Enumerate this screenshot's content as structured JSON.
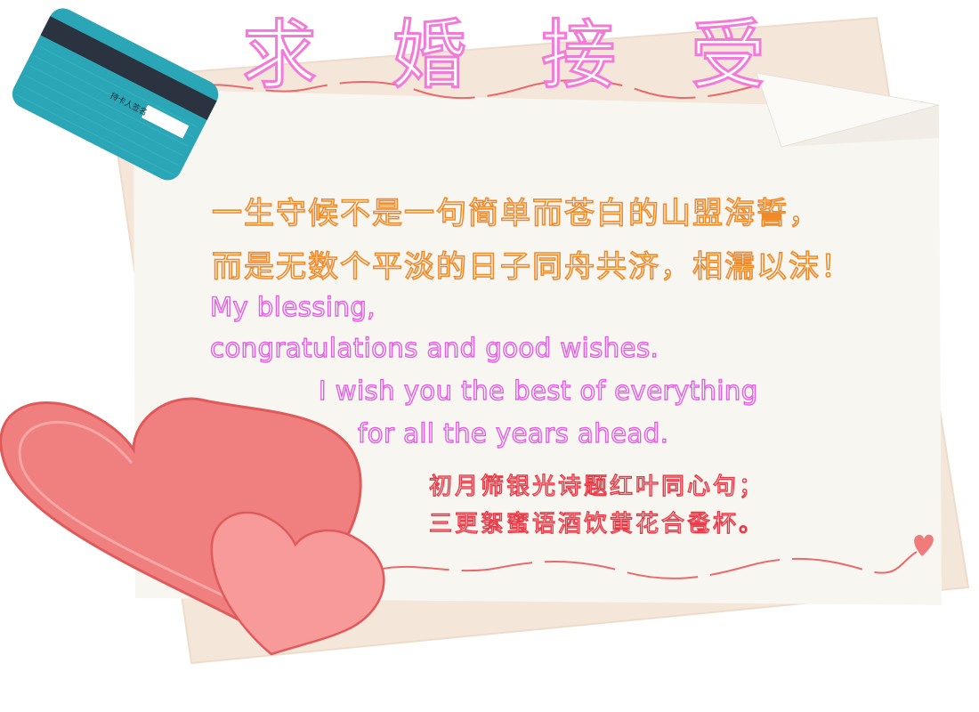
{
  "title": {
    "chars": [
      "求",
      "婚",
      "接",
      "受"
    ]
  },
  "message": {
    "chinese_lines": [
      "一生守候不是一句简单而苍白的山盟海誓，",
      "而是无数个平淡的日子同舟共济，相濡以沫！"
    ],
    "english_lines": [
      "My blessing,",
      "congratulations and good wishes.",
      "I wish you the best of everything",
      "for all the years ahead."
    ],
    "couplet": [
      "初月筛银光诗题红叶同心句；",
      "三更絮蜜语酒饮黄花合卺杯。"
    ]
  },
  "card": {
    "label": "持卡人签名"
  },
  "icons": [
    "bank-card-icon",
    "heart-icon",
    "folded-corner-icon"
  ],
  "colors": {
    "title_stroke": "#f27ad9",
    "chinese_stroke": "#ee8a2a",
    "english_stroke": "#e25fe2",
    "couplet_stroke": "#e63946",
    "paper": "#f8f5ef",
    "back_paper": "#f3e5d6",
    "card": "#2aa6b6",
    "heart_big": "#f08080",
    "heart_small": "#f89a9a",
    "wave": "#e86a6a"
  }
}
